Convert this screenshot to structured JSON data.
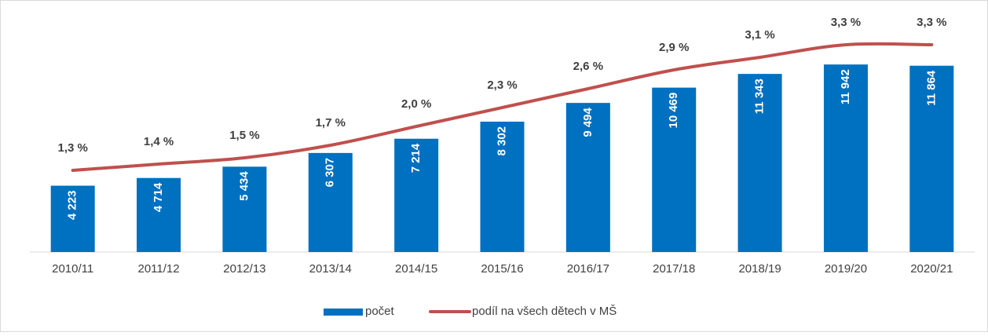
{
  "chart_data": {
    "type": "bar-line",
    "categories": [
      "2010/11",
      "2011/12",
      "2012/13",
      "2013/14",
      "2014/15",
      "2015/16",
      "2016/17",
      "2017/18",
      "2018/19",
      "2019/20",
      "2020/21"
    ],
    "series": [
      {
        "name": "počet",
        "type": "bar",
        "color": "#0070c0",
        "values": [
          4223,
          4714,
          5434,
          6307,
          7214,
          8302,
          9494,
          10469,
          11343,
          11942,
          11864
        ],
        "value_labels": [
          "4 223",
          "4 714",
          "5 434",
          "6 307",
          "7 214",
          "8 302",
          "9 494",
          "10 469",
          "11 343",
          "11 942",
          "11 864"
        ]
      },
      {
        "name": "podíl na všech dětech v MŠ",
        "type": "line",
        "axis": "y2",
        "color": "#c0504d",
        "values": [
          1.3,
          1.4,
          1.5,
          1.7,
          2.0,
          2.3,
          2.6,
          2.9,
          3.1,
          3.3,
          3.3
        ],
        "value_labels": [
          "1,3 %",
          "1,4 %",
          "1,5 %",
          "1,7 %",
          "2,0 %",
          "2,3 %",
          "2,6 %",
          "2,9 %",
          "3,1 %",
          "3,3 %",
          "3,3 %"
        ]
      }
    ],
    "ylim": [
      0,
      14000
    ],
    "y2lim": [
      0,
      3.5
    ],
    "legend": "bottom"
  }
}
